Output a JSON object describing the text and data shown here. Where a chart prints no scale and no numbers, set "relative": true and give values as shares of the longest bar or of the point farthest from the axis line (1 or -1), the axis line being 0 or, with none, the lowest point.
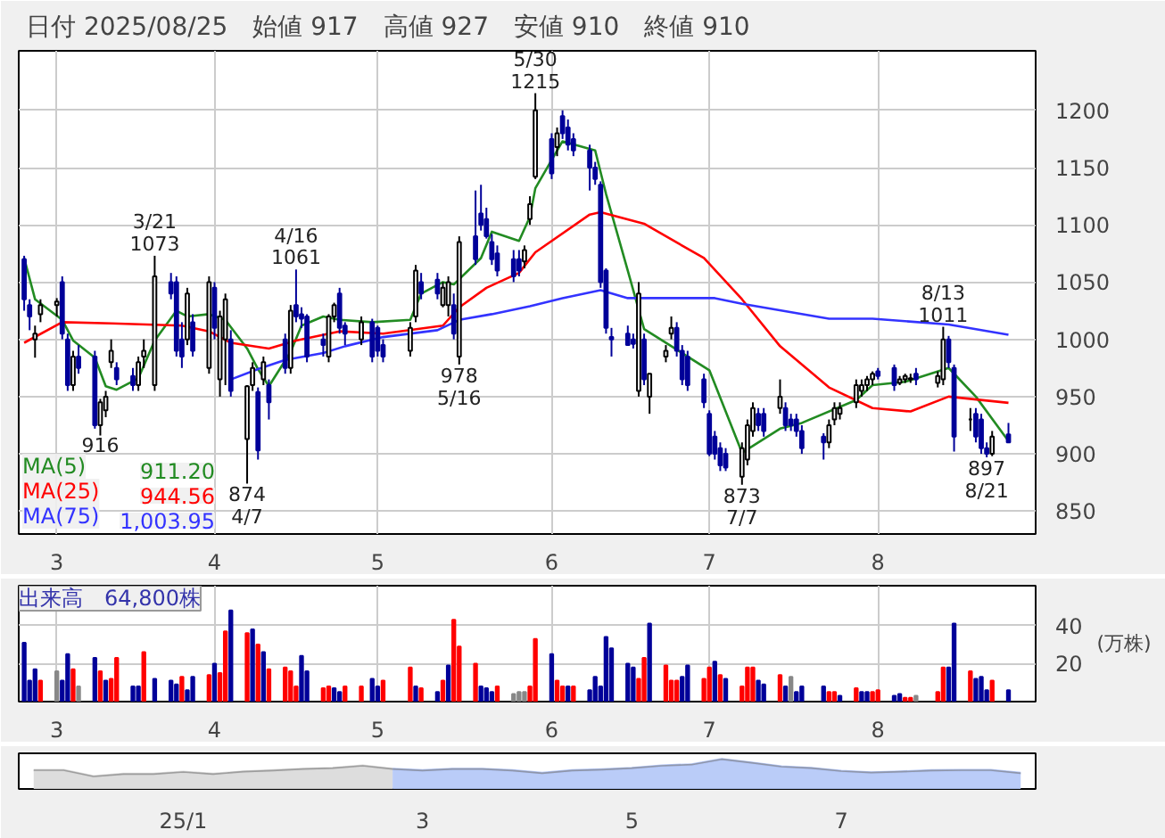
{
  "chart_data": [
    {
      "type": "candlestick",
      "title": "日付 2025/08/25　始値 917　高値 927　安値 910　終値 910",
      "x": [
        "2025-02-25",
        "2025-02-26",
        "2025-02-27",
        "2025-02-28",
        "2025-03-03",
        "2025-03-04",
        "2025-03-05",
        "2025-03-06",
        "2025-03-07",
        "2025-03-10",
        "2025-03-11",
        "2025-03-12",
        "2025-03-13",
        "2025-03-14",
        "2025-03-17",
        "2025-03-18",
        "2025-03-19",
        "2025-03-21",
        "2025-03-24",
        "2025-03-25",
        "2025-03-26",
        "2025-03-27",
        "2025-03-28",
        "2025-03-31",
        "2025-04-01",
        "2025-04-02",
        "2025-04-03",
        "2025-04-04",
        "2025-04-07",
        "2025-04-08",
        "2025-04-09",
        "2025-04-10",
        "2025-04-11",
        "2025-04-14",
        "2025-04-15",
        "2025-04-16",
        "2025-04-17",
        "2025-04-18",
        "2025-04-21",
        "2025-04-22",
        "2025-04-23",
        "2025-04-24",
        "2025-04-25",
        "2025-04-28",
        "2025-04-30",
        "2025-05-01",
        "2025-05-02",
        "2025-05-07",
        "2025-05-08",
        "2025-05-09",
        "2025-05-12",
        "2025-05-13",
        "2025-05-14",
        "2025-05-15",
        "2025-05-16",
        "2025-05-19",
        "2025-05-20",
        "2025-05-21",
        "2025-05-22",
        "2025-05-23",
        "2025-05-26",
        "2025-05-27",
        "2025-05-28",
        "2025-05-29",
        "2025-05-30",
        "2025-06-02",
        "2025-06-03",
        "2025-06-04",
        "2025-06-05",
        "2025-06-06",
        "2025-06-09",
        "2025-06-10",
        "2025-06-11",
        "2025-06-12",
        "2025-06-13",
        "2025-06-16",
        "2025-06-17",
        "2025-06-18",
        "2025-06-19",
        "2025-06-20",
        "2025-06-23",
        "2025-06-24",
        "2025-06-25",
        "2025-06-26",
        "2025-06-27",
        "2025-06-30",
        "2025-07-01",
        "2025-07-02",
        "2025-07-03",
        "2025-07-04",
        "2025-07-07",
        "2025-07-08",
        "2025-07-09",
        "2025-07-10",
        "2025-07-11",
        "2025-07-14",
        "2025-07-15",
        "2025-07-16",
        "2025-07-17",
        "2025-07-18",
        "2025-07-22",
        "2025-07-23",
        "2025-07-24",
        "2025-07-25",
        "2025-07-28",
        "2025-07-29",
        "2025-07-30",
        "2025-07-31",
        "2025-08-01",
        "2025-08-04",
        "2025-08-05",
        "2025-08-06",
        "2025-08-07",
        "2025-08-08",
        "2025-08-12",
        "2025-08-13",
        "2025-08-14",
        "2025-08-15",
        "2025-08-18",
        "2025-08-19",
        "2025-08-20",
        "2025-08-21",
        "2025-08-22",
        "2025-08-25"
      ],
      "xticks": [
        {
          "value": "2025-03-03",
          "label": "3"
        },
        {
          "value": "2025-04-01",
          "label": "4"
        },
        {
          "value": "2025-05-01",
          "label": "5"
        },
        {
          "value": "2025-06-02",
          "label": "6"
        },
        {
          "value": "2025-07-01",
          "label": "7"
        },
        {
          "value": "2025-08-01",
          "label": "8"
        }
      ],
      "ohlc": [
        [
          1070,
          1073,
          1025,
          1035
        ],
        [
          1030,
          1035,
          1008,
          1020
        ],
        [
          1000,
          1012,
          984,
          1005
        ],
        [
          1022,
          1035,
          1015,
          1030
        ],
        [
          1030,
          1036,
          1020,
          1033
        ],
        [
          1050,
          1055,
          1000,
          1005
        ],
        [
          1000,
          1005,
          955,
          960
        ],
        [
          960,
          990,
          955,
          985
        ],
        [
          985,
          995,
          970,
          975
        ],
        [
          985,
          990,
          922,
          925
        ],
        [
          925,
          948,
          916,
          945
        ],
        [
          938,
          955,
          932,
          950
        ],
        [
          980,
          1000,
          975,
          990
        ],
        [
          975,
          980,
          960,
          965
        ],
        [
          968,
          975,
          955,
          960
        ],
        [
          960,
          985,
          955,
          980
        ],
        [
          985,
          1000,
          975,
          990
        ],
        [
          960,
          1073,
          955,
          1055
        ],
        [
          1050,
          1058,
          1035,
          1040
        ],
        [
          1050,
          1055,
          985,
          990
        ],
        [
          1000,
          1015,
          975,
          985
        ],
        [
          1000,
          1045,
          995,
          1040
        ],
        [
          1015,
          1022,
          985,
          990
        ],
        [
          975,
          1055,
          970,
          1050
        ],
        [
          1045,
          1050,
          1000,
          1010
        ],
        [
          965,
          1025,
          950,
          1020
        ],
        [
          1000,
          1040,
          960,
          1035
        ],
        [
          1000,
          1008,
          950,
          955
        ],
        [
          913,
          960,
          874,
          959
        ],
        [
          960,
          980,
          955,
          975
        ],
        [
          954,
          958,
          895,
          903
        ],
        [
          965,
          985,
          960,
          980
        ],
        [
          960,
          965,
          930,
          945
        ],
        [
          1000,
          1005,
          970,
          975
        ],
        [
          975,
          1030,
          970,
          1025
        ],
        [
          1030,
          1061,
          1015,
          1020
        ],
        [
          1022,
          1028,
          1010,
          1018
        ],
        [
          1020,
          1022,
          980,
          985
        ],
        [
          1000,
          1005,
          985,
          995
        ],
        [
          985,
          1022,
          980,
          1020
        ],
        [
          1020,
          1032,
          1015,
          1030
        ],
        [
          1040,
          1045,
          1005,
          1010
        ],
        [
          1012,
          1015,
          995,
          1005
        ],
        [
          1000,
          1020,
          995,
          1015
        ],
        [
          1015,
          1018,
          980,
          985
        ],
        [
          1010,
          1012,
          985,
          990
        ],
        [
          995,
          1000,
          980,
          985
        ],
        [
          990,
          1015,
          985,
          1010
        ],
        [
          1020,
          1065,
          1015,
          1060
        ],
        [
          1050,
          1058,
          1035,
          1040
        ],
        [
          1052,
          1058,
          1035,
          1040
        ],
        [
          1030,
          1050,
          1028,
          1045
        ],
        [
          1030,
          1055,
          1020,
          1050
        ],
        [
          1030,
          1040,
          1000,
          1005
        ],
        [
          985,
          1090,
          978,
          1085
        ],
        [
          1090,
          1130,
          1065,
          1070
        ],
        [
          1110,
          1135,
          1095,
          1100
        ],
        [
          1105,
          1115,
          1088,
          1090
        ],
        [
          1085,
          1092,
          1065,
          1070
        ],
        [
          1075,
          1082,
          1055,
          1060
        ],
        [
          1070,
          1078,
          1050,
          1055
        ],
        [
          1070,
          1078,
          1055,
          1060
        ],
        [
          1068,
          1082,
          1062,
          1078
        ],
        [
          1105,
          1125,
          1100,
          1118
        ],
        [
          1142,
          1215,
          1140,
          1200
        ],
        [
          1175,
          1180,
          1140,
          1145
        ],
        [
          1168,
          1185,
          1160,
          1180
        ],
        [
          1195,
          1200,
          1175,
          1180
        ],
        [
          1185,
          1192,
          1165,
          1170
        ],
        [
          1175,
          1180,
          1160,
          1165
        ],
        [
          1165,
          1170,
          1130,
          1150
        ],
        [
          1150,
          1155,
          1135,
          1140
        ],
        [
          1135,
          1138,
          1045,
          1050
        ],
        [
          1060,
          1062,
          1005,
          1010
        ],
        [
          1002,
          1010,
          985,
          1000
        ],
        [
          1005,
          1012,
          995,
          995
        ],
        [
          1000,
          1005,
          992,
          996
        ],
        [
          955,
          1050,
          950,
          1040
        ],
        [
          1000,
          1005,
          960,
          965
        ],
        [
          950,
          970,
          935,
          970
        ],
        [
          985,
          995,
          980,
          990
        ],
        [
          1005,
          1020,
          1000,
          1010
        ],
        [
          1010,
          1015,
          985,
          990
        ],
        [
          990,
          995,
          960,
          965
        ],
        [
          985,
          990,
          955,
          960
        ],
        [
          965,
          970,
          940,
          945
        ],
        [
          935,
          938,
          898,
          900
        ],
        [
          915,
          920,
          895,
          900
        ],
        [
          905,
          910,
          885,
          890
        ],
        [
          900,
          905,
          885,
          888
        ],
        [
          880,
          910,
          873,
          905
        ],
        [
          895,
          930,
          890,
          925
        ],
        [
          920,
          945,
          915,
          940
        ],
        [
          935,
          940,
          920,
          925
        ],
        [
          935,
          940,
          915,
          920
        ],
        [
          940,
          965,
          935,
          950
        ],
        [
          940,
          945,
          920,
          925
        ],
        [
          930,
          935,
          920,
          925
        ],
        [
          930,
          935,
          915,
          920
        ],
        [
          920,
          925,
          900,
          905
        ],
        [
          915,
          918,
          895,
          910
        ],
        [
          910,
          930,
          905,
          925
        ],
        [
          930,
          945,
          925,
          940
        ],
        [
          935,
          945,
          930,
          940
        ],
        [
          945,
          965,
          940,
          960
        ],
        [
          955,
          965,
          950,
          960
        ],
        [
          960,
          968,
          955,
          965
        ],
        [
          965,
          972,
          960,
          970
        ],
        [
          972,
          975,
          965,
          968
        ],
        [
          975,
          978,
          955,
          960
        ],
        [
          962,
          968,
          960,
          965
        ],
        [
          965,
          970,
          962,
          968
        ],
        [
          965,
          970,
          962,
          966
        ],
        [
          970,
          975,
          960,
          965
        ],
        [
          962,
          972,
          958,
          968
        ],
        [
          965,
          1011,
          960,
          1000
        ],
        [
          1000,
          1003,
          975,
          980
        ],
        [
          975,
          978,
          902,
          915
        ],
        [
          930,
          940,
          920,
          930
        ],
        [
          935,
          940,
          910,
          915
        ],
        [
          930,
          935,
          900,
          905
        ],
        [
          905,
          910,
          897,
          900
        ],
        [
          900,
          920,
          898,
          915
        ],
        [
          917,
          927,
          910,
          910
        ]
      ],
      "xlim": [
        "2025-02-24",
        "2025-08-30"
      ],
      "ylim": [
        830,
        1252
      ],
      "yticks": [
        850,
        900,
        950,
        1000,
        1050,
        1100,
        1150,
        1200
      ],
      "grid": true,
      "legend": "bottom left",
      "series": [
        {
          "type": "line",
          "name": "MA(5)",
          "color": "#228b22",
          "x": [
            "2025-02-25",
            "2025-02-27",
            "2025-03-04",
            "2025-03-06",
            "2025-03-10",
            "2025-03-12",
            "2025-03-14",
            "2025-03-18",
            "2025-03-21",
            "2025-03-25",
            "2025-03-27",
            "2025-03-31",
            "2025-04-03",
            "2025-04-07",
            "2025-04-09",
            "2025-04-11",
            "2025-04-15",
            "2025-04-17",
            "2025-04-21",
            "2025-04-24",
            "2025-04-30",
            "2025-05-07",
            "2025-05-09",
            "2025-05-13",
            "2025-05-15",
            "2025-05-20",
            "2025-05-22",
            "2025-05-27",
            "2025-05-29",
            "2025-05-30",
            "2025-06-04",
            "2025-06-10",
            "2025-06-12",
            "2025-06-16",
            "2025-06-19",
            "2025-06-25",
            "2025-07-01",
            "2025-07-07",
            "2025-07-14",
            "2025-07-18",
            "2025-07-28",
            "2025-07-31",
            "2025-08-06",
            "2025-08-14",
            "2025-08-19",
            "2025-08-25"
          ],
          "values": [
            1071,
            1035,
            1017,
            999,
            984,
            959,
            956,
            966,
            999,
            1025,
            1020,
            1022,
            1017,
            992,
            974,
            959,
            989,
            1012,
            1020,
            1017,
            1015,
            1017,
            1040,
            1050,
            1048,
            1071,
            1094,
            1086,
            1107,
            1132,
            1173,
            1165,
            1127,
            1060,
            1009,
            991,
            973,
            901,
            922,
            927,
            947,
            960,
            963,
            975,
            950,
            911.2
          ]
        },
        {
          "type": "line",
          "name": "MA(25)",
          "color": "#ff0000",
          "x": [
            "2025-02-25",
            "2025-03-04",
            "2025-03-13",
            "2025-03-26",
            "2025-03-31",
            "2025-04-04",
            "2025-04-11",
            "2025-04-16",
            "2025-04-24",
            "2025-05-02",
            "2025-05-13",
            "2025-05-16",
            "2025-05-21",
            "2025-05-27",
            "2025-05-30",
            "2025-06-09",
            "2025-06-11",
            "2025-06-19",
            "2025-06-30",
            "2025-07-07",
            "2025-07-14",
            "2025-07-23",
            "2025-07-31",
            "2025-08-07",
            "2025-08-14",
            "2025-08-25"
          ],
          "values": [
            997,
            1015,
            1014,
            1012,
            1007,
            997,
            992,
            999,
            1007,
            1005,
            1012,
            1028,
            1045,
            1058,
            1076,
            1109,
            1111,
            1101,
            1071,
            1035,
            994,
            958,
            940,
            937,
            950,
            944.56
          ]
        },
        {
          "type": "line",
          "name": "MA(75)",
          "color": "#3333ff",
          "x": [
            "2025-04-04",
            "2025-04-09",
            "2025-04-14",
            "2025-04-21",
            "2025-04-25",
            "2025-05-02",
            "2025-05-12",
            "2025-05-16",
            "2025-05-22",
            "2025-05-29",
            "2025-06-04",
            "2025-06-11",
            "2025-06-16",
            "2025-07-02",
            "2025-07-07",
            "2025-07-23",
            "2025-07-31",
            "2025-08-14",
            "2025-08-25"
          ],
          "values": [
            965,
            974,
            982,
            988,
            994,
            1002,
            1008,
            1017,
            1022,
            1029,
            1036,
            1043,
            1036,
            1036,
            1031,
            1018,
            1018,
            1013,
            1003.95
          ]
        }
      ],
      "annotations": [
        "911.20",
        "944.56",
        "1,003.95",
        {
          "text": "3/21\n1073",
          "x": "2025-03-21",
          "y": 1073
        },
        {
          "text": "916",
          "x": "2025-03-11",
          "y": 916
        },
        {
          "text": "874\n4/7",
          "x": "2025-04-07",
          "y": 874
        },
        {
          "text": "4/16\n1061",
          "x": "2025-04-16",
          "y": 1061
        },
        {
          "text": "978\n5/16",
          "x": "2025-05-16",
          "y": 978
        },
        {
          "text": "5/30\n1215",
          "x": "2025-05-30",
          "y": 1215
        },
        {
          "text": "873\n7/7",
          "x": "2025-07-07",
          "y": 873
        },
        {
          "text": "8/13\n1011",
          "x": "2025-08-13",
          "y": 1011
        },
        {
          "text": "897\n8/21",
          "x": "2025-08-21",
          "y": 897
        }
      ]
    },
    {
      "type": "bar",
      "title": "出来高　64,800株",
      "ylabel": "(万株)",
      "x": [
        "2025-02-25",
        "2025-02-26",
        "2025-02-27",
        "2025-02-28",
        "2025-03-03",
        "2025-03-04",
        "2025-03-05",
        "2025-03-06",
        "2025-03-07",
        "2025-03-10",
        "2025-03-11",
        "2025-03-12",
        "2025-03-13",
        "2025-03-14",
        "2025-03-17",
        "2025-03-18",
        "2025-03-19",
        "2025-03-21",
        "2025-03-24",
        "2025-03-25",
        "2025-03-26",
        "2025-03-27",
        "2025-03-28",
        "2025-03-31",
        "2025-04-01",
        "2025-04-02",
        "2025-04-03",
        "2025-04-04",
        "2025-04-07",
        "2025-04-08",
        "2025-04-09",
        "2025-04-10",
        "2025-04-11",
        "2025-04-14",
        "2025-04-15",
        "2025-04-16",
        "2025-04-17",
        "2025-04-18",
        "2025-04-21",
        "2025-04-22",
        "2025-04-23",
        "2025-04-24",
        "2025-04-25",
        "2025-04-28",
        "2025-04-30",
        "2025-05-01",
        "2025-05-02",
        "2025-05-07",
        "2025-05-08",
        "2025-05-09",
        "2025-05-12",
        "2025-05-13",
        "2025-05-14",
        "2025-05-15",
        "2025-05-16",
        "2025-05-19",
        "2025-05-20",
        "2025-05-21",
        "2025-05-22",
        "2025-05-23",
        "2025-05-26",
        "2025-05-27",
        "2025-05-28",
        "2025-05-29",
        "2025-05-30",
        "2025-06-02",
        "2025-06-03",
        "2025-06-04",
        "2025-06-05",
        "2025-06-06",
        "2025-06-09",
        "2025-06-10",
        "2025-06-11",
        "2025-06-12",
        "2025-06-13",
        "2025-06-16",
        "2025-06-17",
        "2025-06-18",
        "2025-06-19",
        "2025-06-20",
        "2025-06-23",
        "2025-06-24",
        "2025-06-25",
        "2025-06-26",
        "2025-06-27",
        "2025-06-30",
        "2025-07-01",
        "2025-07-02",
        "2025-07-03",
        "2025-07-04",
        "2025-07-07",
        "2025-07-08",
        "2025-07-09",
        "2025-07-10",
        "2025-07-11",
        "2025-07-14",
        "2025-07-15",
        "2025-07-16",
        "2025-07-17",
        "2025-07-18",
        "2025-07-22",
        "2025-07-23",
        "2025-07-24",
        "2025-07-25",
        "2025-07-28",
        "2025-07-29",
        "2025-07-30",
        "2025-07-31",
        "2025-08-01",
        "2025-08-04",
        "2025-08-05",
        "2025-08-06",
        "2025-08-07",
        "2025-08-08",
        "2025-08-12",
        "2025-08-13",
        "2025-08-14",
        "2025-08-15",
        "2025-08-18",
        "2025-08-19",
        "2025-08-20",
        "2025-08-21",
        "2025-08-22",
        "2025-08-25"
      ],
      "xticks": [
        {
          "value": "2025-03-03",
          "label": "3"
        },
        {
          "value": "2025-04-01",
          "label": "4"
        },
        {
          "value": "2025-05-01",
          "label": "5"
        },
        {
          "value": "2025-06-02",
          "label": "6"
        },
        {
          "value": "2025-07-01",
          "label": "7"
        },
        {
          "value": "2025-08-01",
          "label": "8"
        }
      ],
      "values": [
        31,
        11,
        17,
        11,
        16,
        11,
        25,
        17,
        8,
        23,
        16,
        11,
        12,
        23,
        8,
        8,
        26,
        12,
        11,
        9,
        13,
        6,
        13,
        14,
        20,
        15,
        37,
        48,
        36,
        38,
        30,
        26,
        17,
        18,
        16,
        8,
        24,
        16,
        7,
        8,
        7,
        5,
        8,
        8,
        12,
        8,
        11,
        18,
        8,
        7,
        5,
        11,
        19,
        43,
        29,
        20,
        8,
        7,
        5,
        8,
        4,
        5,
        5,
        8,
        33,
        25,
        11,
        8,
        8,
        8,
        6,
        13,
        8,
        34,
        28,
        20,
        18,
        12,
        23,
        41,
        19,
        11,
        11,
        13,
        19,
        12,
        18,
        21,
        14,
        12,
        8,
        18,
        18,
        11,
        9,
        14,
        8,
        13,
        5,
        8,
        8,
        5,
        5,
        3,
        7,
        5,
        5,
        5,
        6,
        3,
        4,
        2,
        2,
        3,
        5,
        18,
        18,
        41,
        16,
        12,
        13,
        6,
        11,
        6
      ],
      "colors": [
        "#000099",
        "#000099",
        "#000099",
        "#ff0000",
        "#888888",
        "#000099",
        "#000099",
        "#ff0000",
        "#888888",
        "#000099",
        "#ff0000",
        "#000099",
        "#ff0000",
        "#ff0000",
        "#000099",
        "#000099",
        "#ff0000",
        "#000099",
        "#000099",
        "#000099",
        "#ff0000",
        "#000099",
        "#000099",
        "#ff0000",
        "#000099",
        "#ff0000",
        "#ff0000",
        "#000099",
        "#ff0000",
        "#000099",
        "#ff0000",
        "#000099",
        "#ff0000",
        "#ff0000",
        "#ff0000",
        "#ff0000",
        "#000099",
        "#000099",
        "#ff0000",
        "#ff0000",
        "#000099",
        "#000099",
        "#ff0000",
        "#ff0000",
        "#000099",
        "#000099",
        "#ff0000",
        "#ff0000",
        "#000099",
        "#ff0000",
        "#000099",
        "#ff0000",
        "#000099",
        "#ff0000",
        "#ff0000",
        "#ff0000",
        "#000099",
        "#000099",
        "#000099",
        "#ff0000",
        "#888888",
        "#888888",
        "#888888",
        "#ff0000",
        "#ff0000",
        "#000099",
        "#ff0000",
        "#ff0000",
        "#000099",
        "#ff0000",
        "#000099",
        "#000099",
        "#000099",
        "#000099",
        "#000099",
        "#000099",
        "#000099",
        "#ff0000",
        "#ff0000",
        "#000099",
        "#ff0000",
        "#ff0000",
        "#ff0000",
        "#000099",
        "#000099",
        "#ff0000",
        "#ff0000",
        "#000099",
        "#ff0000",
        "#000099",
        "#ff0000",
        "#ff0000",
        "#ff0000",
        "#000099",
        "#000099",
        "#ff0000",
        "#000099",
        "#888888",
        "#000099",
        "#000099",
        "#000099",
        "#ff0000",
        "#ff0000",
        "#000099",
        "#ff0000",
        "#000099",
        "#000099",
        "#ff0000",
        "#ff0000",
        "#000099",
        "#000099",
        "#ff0000",
        "#ff0000",
        "#888888",
        "#ff0000",
        "#ff0000",
        "#000099",
        "#000099",
        "#ff0000",
        "#000099",
        "#000099",
        "#000099",
        "#ff0000",
        "#000099"
      ],
      "xlim": [
        "2025-02-24",
        "2025-08-30"
      ],
      "ylim": [
        0,
        61
      ],
      "yticks": [
        20,
        40
      ],
      "grid": true
    },
    {
      "type": "area",
      "relative": true,
      "categories": [
        null,
        null,
        null,
        null,
        null,
        "25/1",
        null,
        null,
        null,
        null,
        null,
        null,
        null,
        "3",
        null,
        null,
        null,
        null,
        null,
        null,
        "5",
        null,
        null,
        null,
        null,
        null,
        null,
        "7",
        null,
        null,
        null,
        null,
        null,
        null
      ],
      "series": [
        {
          "color": "#d9d9d9",
          "values": [
            0.63,
            0.63,
            0.42,
            0.5,
            0.5,
            0.57,
            0.5,
            0.58,
            0.62,
            0.67,
            0.7,
            0.78,
            0.67,
            null,
            null,
            null,
            null,
            null,
            null,
            null,
            null,
            null,
            null,
            null,
            null,
            null,
            null,
            null,
            null,
            null,
            null,
            null,
            null,
            null
          ]
        },
        {
          "color": "#b3c6f7",
          "values": [
            null,
            null,
            null,
            null,
            null,
            null,
            null,
            null,
            null,
            null,
            null,
            null,
            0.67,
            0.62,
            0.67,
            0.67,
            0.62,
            0.53,
            0.62,
            0.65,
            0.7,
            0.78,
            0.82,
            1,
            0.88,
            0.75,
            0.7,
            0.6,
            0.55,
            0.58,
            0.62,
            0.63,
            0.63,
            0.53
          ]
        }
      ]
    }
  ]
}
